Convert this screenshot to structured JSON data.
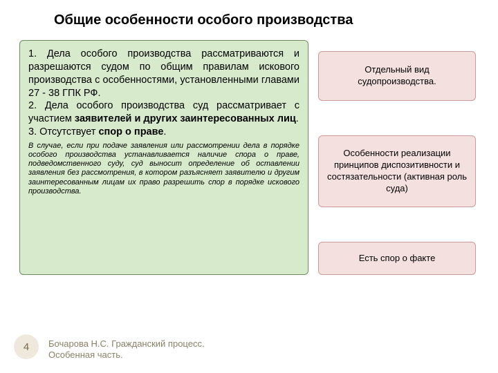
{
  "title": "Общие особенности особого производства",
  "main": {
    "p1_num": "1. ",
    "p1_text": "Дела особого производства рассматриваются и разрешаются судом по общим правилам искового производства с особенностями, установленными главами 27 - 38 ГПК РФ.",
    "p2_num": "2. ",
    "p2_text_a": "Дела особого производства суд рассматривает с участием ",
    "p2_text_b": "заявителей и других заинтересованных лиц",
    "p2_text_c": ".",
    "p3_num": "3. ",
    "p3_text_a": "Отсутствует ",
    "p3_text_b": "спор о праве",
    "p3_text_c": ".",
    "note": "В случае, если при подаче заявления или рассмотрении дела в порядке особого производства устанавливается наличие спора о праве, подведомственного суду, суд выносит определение об оставлении заявления без рассмотрения, в котором разъясняет заявителю и другим заинтересованным лицам их право разрешить спор в порядке искового производства."
  },
  "side": {
    "box1": "Отдельный вид судопроизводства.",
    "box2": "Особенности реализации принципов диспозитивности и состязательности (активная роль суда)",
    "box3": "Есть спор о факте"
  },
  "footer": {
    "page_num": "4",
    "line1": "Бочарова Н.С. Гражданский процесс.",
    "line2": "Особенная часть."
  },
  "style": {
    "title_color": "#000000",
    "title_fontsize": 20,
    "main_bg": "#d7eacb",
    "main_border": "#6b8e63",
    "main_fontsize": 14.5,
    "note_fontsize": 11,
    "side_bg": "#f4e0df",
    "side_border": "#cc9999",
    "side_fontsize": 13,
    "footer_num_bg": "#efe8dc",
    "footer_num_color": "#7a6a4a",
    "footer_text_color": "#888066",
    "page_bg": "#ffffff"
  }
}
